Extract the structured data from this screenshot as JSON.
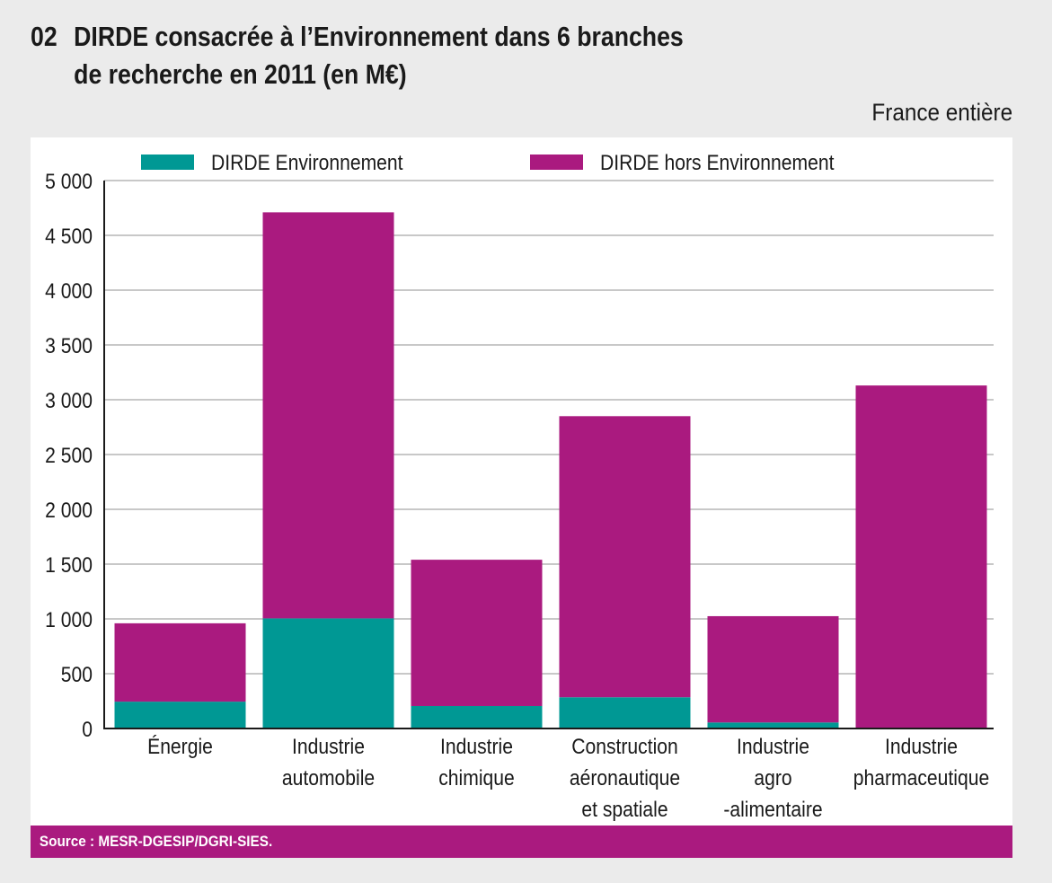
{
  "header": {
    "number": "02",
    "title_line1": "DIRDE consacrée à l’Environnement dans 6 branches",
    "title_line2": "de recherche en 2011 (en M€)",
    "scope": "France entière"
  },
  "footer": {
    "source": "Source : MESR-DGESIP/DGRI-SIES."
  },
  "colors": {
    "environnement": "#009894",
    "hors_environnement": "#aa1a7f",
    "grid": "#c8c8c8",
    "axis": "#1a1a1a"
  },
  "chart_data": {
    "type": "bar",
    "stacked": true,
    "title": "DIRDE consacrée à l’Environnement dans 6 branches de recherche en 2011 (en M€)",
    "xlabel": "",
    "ylabel": "",
    "ylim": [
      0,
      5000
    ],
    "yticks": [
      0,
      500,
      1000,
      1500,
      2000,
      2500,
      3000,
      3500,
      4000,
      4500,
      5000
    ],
    "ytick_labels": [
      "0",
      "500",
      "1 000",
      "1 500",
      "2 000",
      "2 500",
      "3 000",
      "3 500",
      "4 000",
      "4 500",
      "5 000"
    ],
    "grid": true,
    "legend_position": "top",
    "categories": [
      [
        "Énergie"
      ],
      [
        "Industrie",
        "automobile"
      ],
      [
        "Industrie",
        "chimique"
      ],
      [
        "Construction",
        "aéronautique",
        "et spatiale"
      ],
      [
        "Industrie",
        "agro",
        "-alimentaire"
      ],
      [
        "Industrie",
        "pharmaceutique"
      ]
    ],
    "series": [
      {
        "name": "DIRDE Environnement",
        "color": "#009894",
        "values": [
          245,
          1005,
          205,
          285,
          55,
          5
        ]
      },
      {
        "name": "DIRDE hors Environnement",
        "color": "#aa1a7f",
        "values": [
          715,
          3705,
          1335,
          2565,
          970,
          3125
        ]
      }
    ]
  }
}
